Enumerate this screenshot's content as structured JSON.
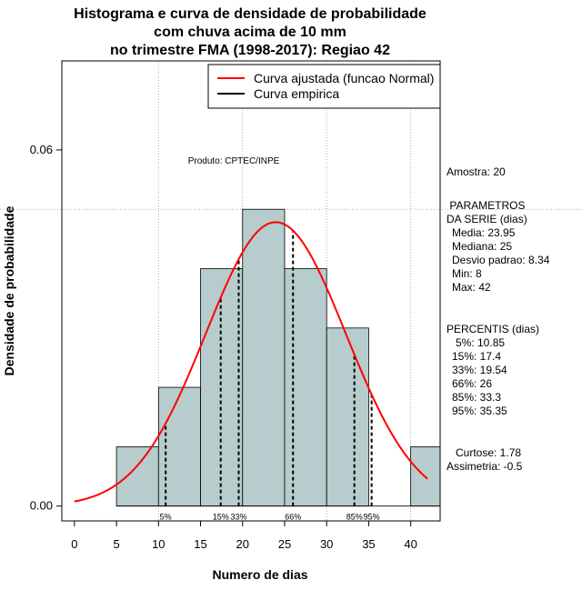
{
  "title_lines": [
    "Histograma e curva de densidade de probabilidade",
    "com chuva acima de 10 mm",
    "no trimestre FMA (1998-2017): Regiao 42"
  ],
  "product_label": "Produto: CPTEC/INPE",
  "legend": {
    "fitted": "Curva ajustada (funcao Normal)",
    "empirical": "Curva empirica",
    "fitted_color": "#ff0000",
    "empirical_color": "#000000"
  },
  "colors": {
    "bar_fill": "#b7cccc",
    "curve": "#ff0000"
  },
  "stats": {
    "sample": "Amostra: 20",
    "params_title_1": " PARAMETROS",
    "params_title_2": "DA SERIE (dias)",
    "media": "Media: 23.95",
    "mediana": "Mediana: 25",
    "desvio": "Desvio padrao: 8.34",
    "min": "Min: 8",
    "max": "Max: 42",
    "percentis_title": "PERCENTIS (dias)",
    "p5": "5%: 10.85",
    "p15": "15%: 17.4",
    "p33": "33%: 19.54",
    "p66": "66%: 26",
    "p85": "85%: 33.3",
    "p95": "95%: 35.35",
    "curtose": "Curtose: 1.78",
    "assimetria": "Assimetria: -0.5"
  },
  "chart_data": {
    "type": "bar",
    "title": "Histograma e curva de densidade de probabilidade com chuva acima de 10 mm no trimestre FMA (1998-2017): Regiao 42",
    "xlabel": "Numero de dias",
    "ylabel": "Densidade de probabilidade",
    "xlim": [
      -1.5,
      43.5
    ],
    "ylim": [
      -0.0025,
      0.075
    ],
    "x_ticks": [
      0,
      5,
      10,
      15,
      20,
      25,
      30,
      35,
      40
    ],
    "y_ticks": [
      0.0,
      0.06
    ],
    "y_tick_labels": [
      "0.00",
      "0.06"
    ],
    "bins": [
      {
        "from": 5,
        "to": 10,
        "density": 0.01
      },
      {
        "from": 10,
        "to": 15,
        "density": 0.02
      },
      {
        "from": 15,
        "to": 20,
        "density": 0.04
      },
      {
        "from": 20,
        "to": 25,
        "density": 0.05
      },
      {
        "from": 25,
        "to": 30,
        "density": 0.04
      },
      {
        "from": 30,
        "to": 35,
        "density": 0.03
      },
      {
        "from": 35,
        "to": 40,
        "density": 0.0
      },
      {
        "from": 40,
        "to": 45,
        "density": 0.01
      }
    ],
    "normal_fit": {
      "mean": 23.95,
      "sd": 8.34,
      "x_from": 0,
      "x_to": 42
    },
    "percentiles": [
      {
        "label": "5%",
        "value": 10.85
      },
      {
        "label": "15%",
        "value": 17.4
      },
      {
        "label": "33%",
        "value": 19.54
      },
      {
        "label": "66%",
        "value": 26
      },
      {
        "label": "85%",
        "value": 33.3
      },
      {
        "label": "95%",
        "value": 35.35
      }
    ],
    "grid_x": [
      10,
      20,
      30,
      40
    ],
    "grid_y": [
      0.05
    ]
  }
}
